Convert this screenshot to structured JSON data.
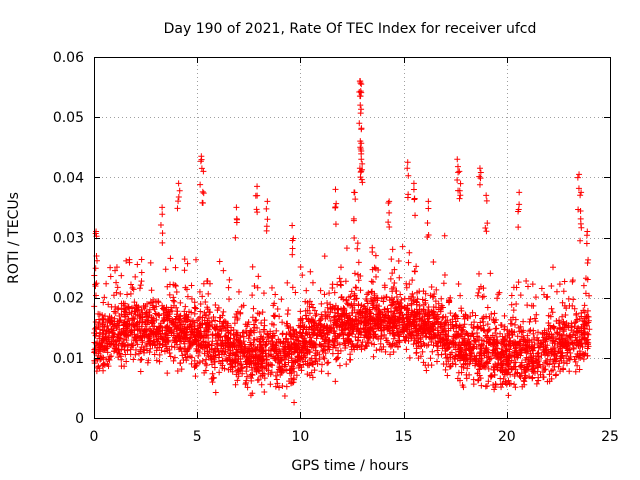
{
  "chart_data": {
    "type": "scatter",
    "title": "Day 190 of 2021, Rate Of TEC Index for receiver ufcd",
    "xlabel": "GPS time / hours",
    "ylabel": "ROTI / TECUs",
    "xlim": [
      0,
      25
    ],
    "ylim": [
      0,
      0.06
    ],
    "x_ticks": [
      0,
      5,
      10,
      15,
      20,
      25
    ],
    "x_tick_labels": [
      "0",
      "5",
      "10",
      "15",
      "20",
      "25"
    ],
    "y_ticks": [
      0,
      0.01,
      0.02,
      0.03,
      0.04,
      0.05,
      0.06
    ],
    "y_tick_labels": [
      "0",
      "0.01",
      "0.02",
      "0.03",
      "0.04",
      "0.05",
      "0.06"
    ],
    "grid": true,
    "marker": "+",
    "color": "#ff0000",
    "x_range_of_data": [
      0,
      24
    ],
    "typical_band": [
      0.005,
      0.025
    ],
    "notable_points": [
      {
        "x": 0.1,
        "y": 0.031
      },
      {
        "x": 3.3,
        "y": 0.035
      },
      {
        "x": 4.1,
        "y": 0.039
      },
      {
        "x": 5.2,
        "y": 0.0435
      },
      {
        "x": 5.3,
        "y": 0.041
      },
      {
        "x": 6.9,
        "y": 0.035
      },
      {
        "x": 7.9,
        "y": 0.0385
      },
      {
        "x": 8.4,
        "y": 0.036
      },
      {
        "x": 9.6,
        "y": 0.032
      },
      {
        "x": 11.7,
        "y": 0.038
      },
      {
        "x": 12.6,
        "y": 0.0375
      },
      {
        "x": 12.9,
        "y": 0.056
      },
      {
        "x": 12.95,
        "y": 0.0555
      },
      {
        "x": 12.9,
        "y": 0.052
      },
      {
        "x": 12.95,
        "y": 0.048
      },
      {
        "x": 12.9,
        "y": 0.045
      },
      {
        "x": 12.95,
        "y": 0.043
      },
      {
        "x": 14.3,
        "y": 0.036
      },
      {
        "x": 15.2,
        "y": 0.0425
      },
      {
        "x": 15.5,
        "y": 0.039
      },
      {
        "x": 16.2,
        "y": 0.036
      },
      {
        "x": 17.6,
        "y": 0.043
      },
      {
        "x": 17.7,
        "y": 0.041
      },
      {
        "x": 18.7,
        "y": 0.0415
      },
      {
        "x": 19.0,
        "y": 0.037
      },
      {
        "x": 20.6,
        "y": 0.0375
      },
      {
        "x": 23.5,
        "y": 0.0405
      },
      {
        "x": 23.6,
        "y": 0.0375
      },
      {
        "x": 23.9,
        "y": 0.031
      }
    ]
  }
}
